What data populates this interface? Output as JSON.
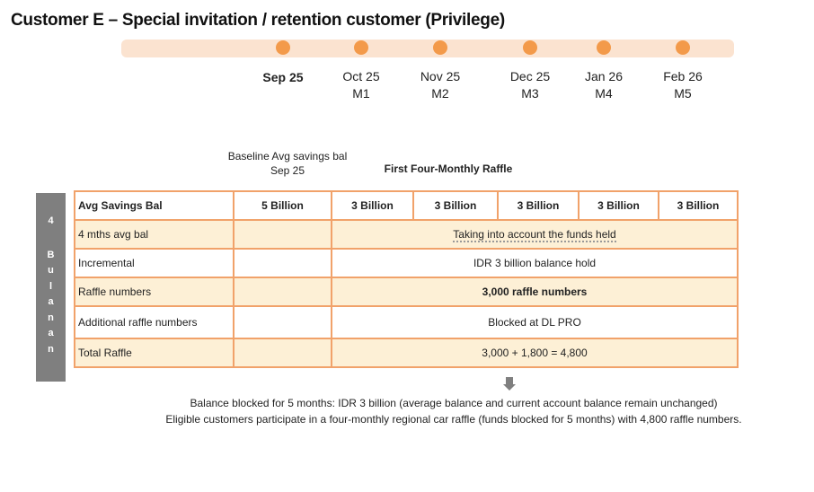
{
  "title": "Customer E – Special invitation / retention customer (Privilege)",
  "timeline": [
    {
      "month": "Sep 25",
      "code": ""
    },
    {
      "month": "Oct 25",
      "code": "M1"
    },
    {
      "month": "Nov 25",
      "code": "M2"
    },
    {
      "month": "Dec 25",
      "code": "M3"
    },
    {
      "month": "Jan 26",
      "code": "M4"
    },
    {
      "month": "Feb 26",
      "code": "M5"
    }
  ],
  "colors": {
    "accent": "#f39a4a",
    "timeline_bar": "#fbe3d0",
    "table_border": "#f1a26a",
    "row_fill": "#fdf0d6",
    "side_bar": "#7f7f7f"
  },
  "headers": {
    "baseline": "Baseline Avg savings bal  Sep 25",
    "raffle": "First Four-Monthly Raffle"
  },
  "side_label": [
    "4",
    "B",
    "u",
    "l",
    "a",
    "n",
    "a",
    "n"
  ],
  "rows": {
    "avg": {
      "label": "Avg Savings Bal",
      "baseline": "5 Billion",
      "months": [
        "3 Billion",
        "3 Billion",
        "3 Billion",
        "3 Billion",
        "3 Billion"
      ]
    },
    "four": {
      "label": "4 mths avg  bal",
      "value": "Taking into account the funds held"
    },
    "inc": {
      "label": "Incremental",
      "value": "IDR 3 billion balance hold"
    },
    "raffle": {
      "label": "Raffle numbers",
      "value": "3,000 raffle numbers"
    },
    "add": {
      "label": "Additional raffle numbers",
      "value": "Blocked at DL PRO"
    },
    "total": {
      "label": "Total Raffle",
      "value": "3,000 + 1,800 = 4,800"
    }
  },
  "notes": [
    "Balance blocked for 5 months: IDR 3 billion (average balance and current account balance remain unchanged)",
    "Eligible customers participate in a four-monthly regional car raffle (funds blocked for 5 months) with 4,800 raffle numbers."
  ]
}
